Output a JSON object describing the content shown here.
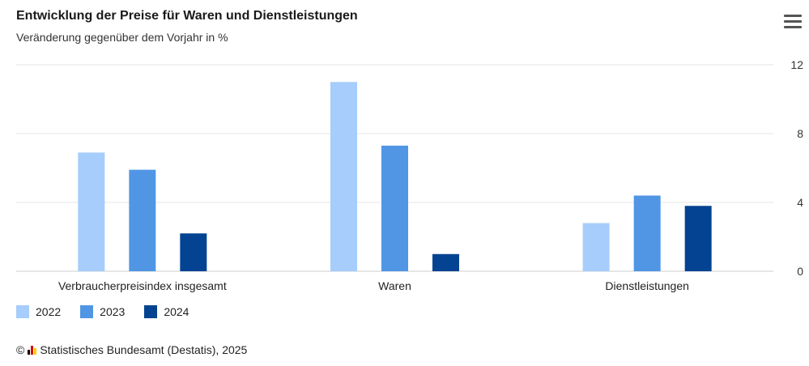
{
  "chart_data": {
    "type": "bar",
    "title": "Entwicklung der Preise für Waren und Dienstleistungen",
    "subtitle": "Veränderung gegenüber dem Vorjahr in %",
    "categories": [
      "Verbraucherpreisindex insgesamt",
      "Waren",
      "Dienstleistungen"
    ],
    "series": [
      {
        "name": "2022",
        "values": [
          6.9,
          11.0,
          2.8
        ],
        "color": "#a6cdfb"
      },
      {
        "name": "2023",
        "values": [
          5.9,
          7.3,
          4.4
        ],
        "color": "#5096e4"
      },
      {
        "name": "2024",
        "values": [
          2.2,
          1.0,
          3.8
        ],
        "color": "#034391"
      }
    ],
    "ylim": [
      0,
      12
    ],
    "yticks": [
      "0",
      "4",
      "8",
      "12"
    ],
    "xlabel": "",
    "ylabel": "",
    "grid": true,
    "legend_position": "bottom-left"
  },
  "source": {
    "copyright": "©",
    "text": "Statistisches Bundesamt (Destatis), 2025"
  },
  "menu_icon": "hamburger-menu-icon",
  "logo_colors": [
    "#000000",
    "#dd0000",
    "#ffcc00"
  ]
}
